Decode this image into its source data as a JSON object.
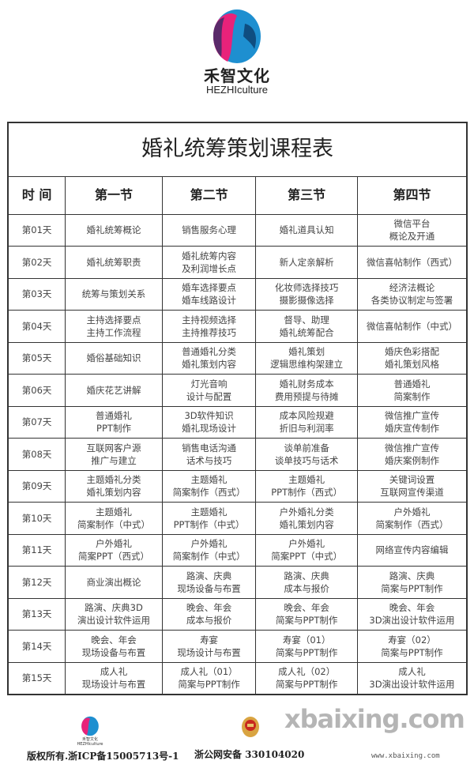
{
  "brand": {
    "name_cn": "禾智文化",
    "name_en": "HEZHIculture",
    "colors": {
      "pink": "#e8227a",
      "blue": "#1e8fd0",
      "purple": "#5a2a6a"
    }
  },
  "table": {
    "title": "婚礼统筹策划课程表",
    "headers": [
      "时 间",
      "第一节",
      "第二节",
      "第三节",
      "第四节"
    ],
    "rows": [
      {
        "day": "第01天",
        "cells": [
          [
            "婚礼统筹概论"
          ],
          [
            "销售服务心理"
          ],
          [
            "婚礼道具认知"
          ],
          [
            "微信平台",
            "概论及开通"
          ]
        ]
      },
      {
        "day": "第02天",
        "cells": [
          [
            "婚礼统筹职责"
          ],
          [
            "婚礼统筹内容",
            "及利润增长点"
          ],
          [
            "新人定亲解析"
          ],
          [
            "微信喜帖制作（西式）"
          ]
        ]
      },
      {
        "day": "第03天",
        "cells": [
          [
            "统筹与策划关系"
          ],
          [
            "婚车选择要点",
            "婚车线路设计"
          ],
          [
            "化妆师选择技巧",
            "摄影摄像选择"
          ],
          [
            "经济法概论",
            "各类协议制定与签署"
          ]
        ]
      },
      {
        "day": "第04天",
        "cells": [
          [
            "主持选择要点",
            "主持工作流程"
          ],
          [
            "主持视频选择",
            "主持推荐技巧"
          ],
          [
            "督导、助理",
            "婚礼统筹配合"
          ],
          [
            "微信喜帖制作（中式）"
          ]
        ]
      },
      {
        "day": "第05天",
        "cells": [
          [
            "婚俗基础知识"
          ],
          [
            "普通婚礼分类",
            "婚礼策划内容"
          ],
          [
            "婚礼策划",
            "逻辑思维构架建立"
          ],
          [
            "婚庆色彩搭配",
            "婚礼策划风格"
          ]
        ]
      },
      {
        "day": "第06天",
        "cells": [
          [
            "婚庆花艺讲解"
          ],
          [
            "灯光音响",
            "设计与配置"
          ],
          [
            "婚礼财务成本",
            "费用预提与待摊"
          ],
          [
            "普通婚礼",
            "简案制作"
          ]
        ]
      },
      {
        "day": "第07天",
        "cells": [
          [
            "普通婚礼",
            "PPT制作"
          ],
          [
            "3D软件知识",
            "婚礼现场设计"
          ],
          [
            "成本风险规避",
            "折旧与利润率"
          ],
          [
            "微信推广宣传",
            "婚庆宣传制作"
          ]
        ]
      },
      {
        "day": "第08天",
        "cells": [
          [
            "互联网客户源",
            "推广与建立"
          ],
          [
            "销售电话沟通",
            "话术与技巧"
          ],
          [
            "谈单前准备",
            "谈单技巧与话术"
          ],
          [
            "微信推广宣传",
            "婚庆案例制作"
          ]
        ]
      },
      {
        "day": "第09天",
        "cells": [
          [
            "主题婚礼分类",
            "婚礼策划内容"
          ],
          [
            "主题婚礼",
            "简案制作（西式）"
          ],
          [
            "主题婚礼",
            "PPT制作（西式）"
          ],
          [
            "关键词设置",
            "互联网宣传渠道"
          ]
        ]
      },
      {
        "day": "第10天",
        "cells": [
          [
            "主题婚礼",
            "简案制作（中式）"
          ],
          [
            "主题婚礼",
            "PPT制作（中式）"
          ],
          [
            "户外婚礼分类",
            "婚礼策划内容"
          ],
          [
            "户外婚礼",
            "简案制作（西式）"
          ]
        ]
      },
      {
        "day": "第11天",
        "cells": [
          [
            "户外婚礼",
            "简案PPT（西式）"
          ],
          [
            "户外婚礼",
            "简案制作（中式）"
          ],
          [
            "户外婚礼",
            "简案PPT（中式）"
          ],
          [
            "网络宣传内容编辑"
          ]
        ]
      },
      {
        "day": "第12天",
        "cells": [
          [
            "商业演出概论"
          ],
          [
            "路演、庆典",
            "现场设备与布置"
          ],
          [
            "路演、庆典",
            "成本与报价"
          ],
          [
            "路演、庆典",
            "简案与PPT制作"
          ]
        ]
      },
      {
        "day": "第13天",
        "cells": [
          [
            "路演、庆典3D",
            "演出设计软件运用"
          ],
          [
            "晚会、年会",
            "成本与报价"
          ],
          [
            "晚会、年会",
            "简案与PPT制作"
          ],
          [
            "晚会、年会",
            "3D演出设计软件运用"
          ]
        ]
      },
      {
        "day": "第14天",
        "cells": [
          [
            "晚会、年会",
            "现场设备与布置"
          ],
          [
            "寿宴",
            "现场设计与布置"
          ],
          [
            "寿宴（01）",
            "简案与PPT制作"
          ],
          [
            "寿宴（02）",
            "简案与PPT制作"
          ]
        ]
      },
      {
        "day": "第15天",
        "cells": [
          [
            "成人礼",
            "现场设计与布置"
          ],
          [
            "成人礼（01）",
            "简案与PPT制作"
          ],
          [
            "成人礼（02）",
            "简案与PPT制作"
          ],
          [
            "成人礼",
            "3D演出设计软件运用"
          ]
        ]
      }
    ]
  },
  "footer": {
    "logo_text": "禾智文化 HEZHIculture",
    "icp": "版权所有.浙ICP备15005713号-1",
    "police_icon": "police-emblem-icon",
    "gongan": "浙公网安备 330104020",
    "watermark": "xbaixing.com",
    "watermark_url": "www.xbaixing.com"
  }
}
